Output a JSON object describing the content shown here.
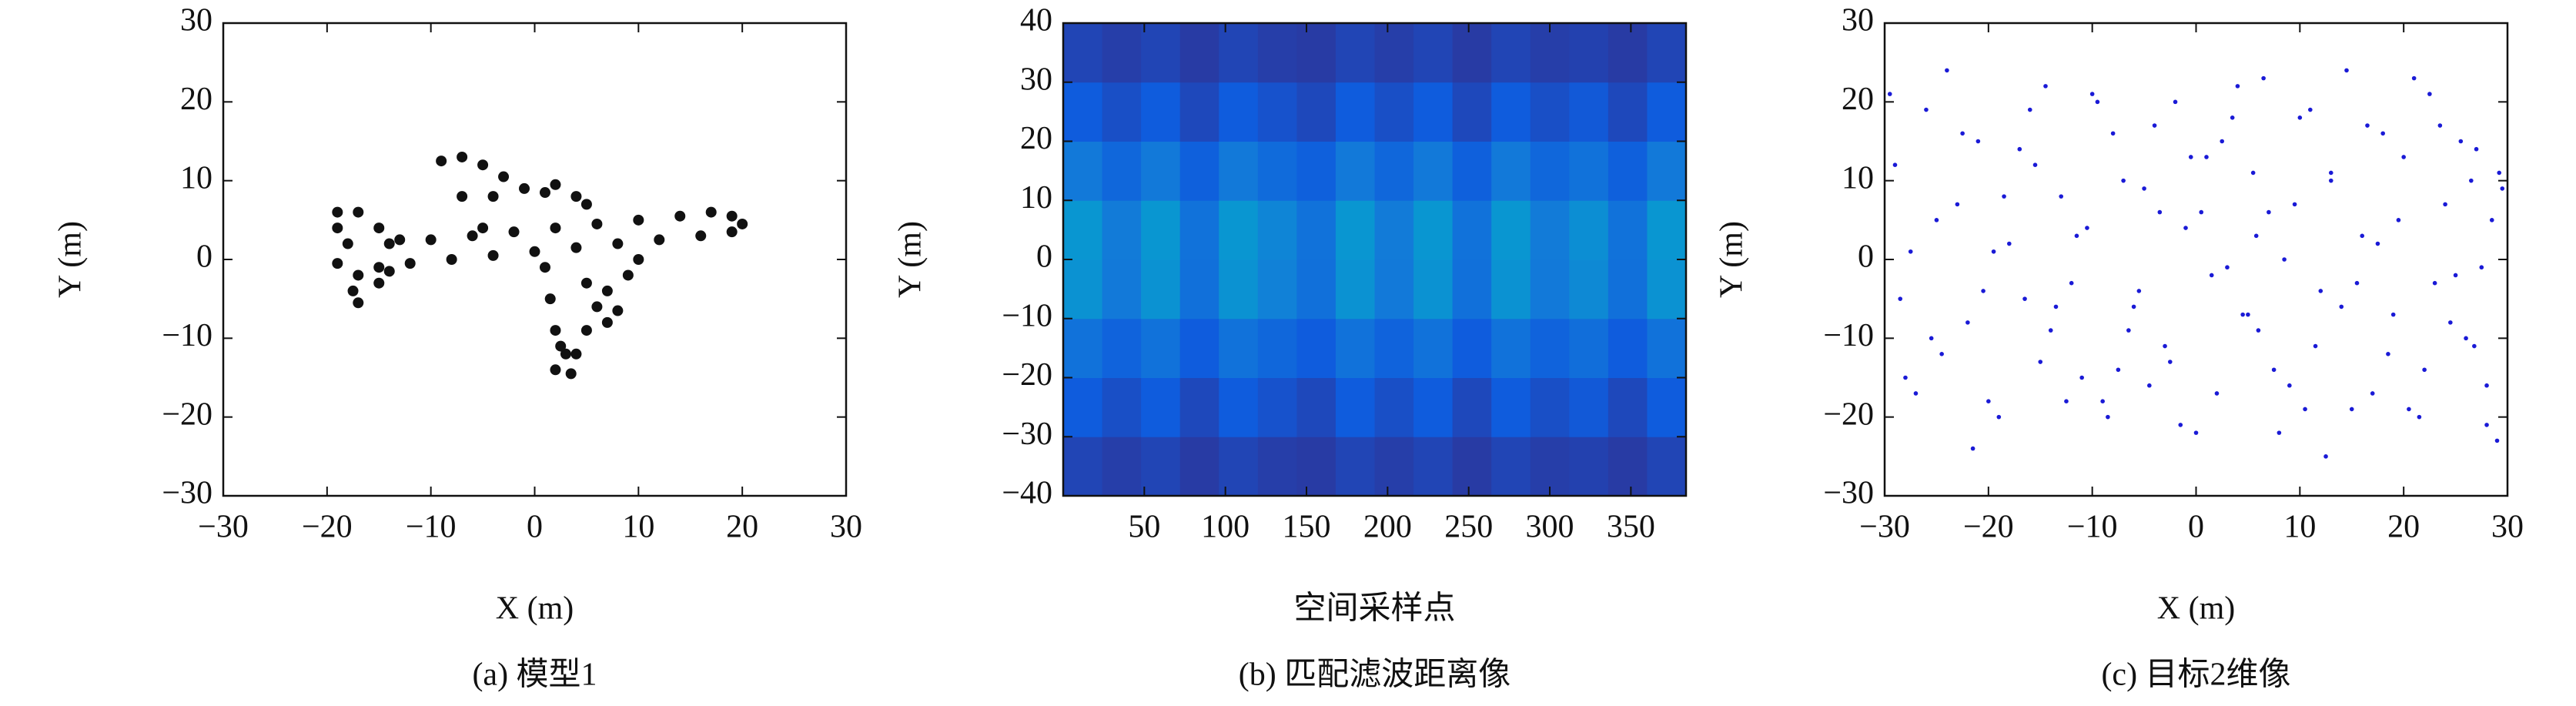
{
  "chart_data": [
    {
      "type": "scatter",
      "caption": "(a) 模型1",
      "xlabel": "X (m)",
      "ylabel": "Y (m)",
      "xlim": [
        -30,
        30
      ],
      "ylim": [
        -30,
        30
      ],
      "xticks": [
        {
          "value": -30,
          "label": "−30"
        },
        {
          "value": -20,
          "label": "−20"
        },
        {
          "value": -10,
          "label": "−10"
        },
        0,
        10,
        20,
        30
      ],
      "yticks": [
        {
          "value": -30,
          "label": "−30"
        },
        {
          "value": -20,
          "label": "−20"
        },
        {
          "value": -10,
          "label": "−10"
        },
        0,
        10,
        20,
        30
      ],
      "color": "#111111",
      "x": [
        -14,
        -10,
        -6,
        -2,
        2,
        6,
        10,
        14,
        17,
        19,
        20,
        19,
        16,
        12,
        8,
        4,
        0,
        -4,
        -8,
        -12,
        -15,
        -19,
        -17,
        -15,
        -13,
        -19,
        -18,
        -17,
        -17.5,
        -17,
        -15,
        -14,
        -19,
        -5,
        -7,
        -9,
        -7,
        -5,
        -3,
        -1,
        1,
        2,
        4,
        5,
        -4,
        1,
        1.5,
        2,
        2,
        3.5,
        4,
        5,
        6,
        7,
        9,
        10,
        5,
        7,
        8,
        3,
        2.5
      ],
      "y": [
        2,
        2.5,
        3,
        3.5,
        4,
        4.5,
        5,
        5.5,
        6,
        5.5,
        4.5,
        3.5,
        3,
        2.5,
        2,
        1.5,
        1,
        0.5,
        0,
        -0.5,
        -1,
        6,
        6,
        4,
        2.5,
        4,
        2,
        -2,
        -4,
        -5.5,
        -3,
        -1.5,
        -0.5,
        4,
        8,
        12.5,
        13,
        12,
        10.5,
        9,
        8.5,
        9.5,
        8,
        7,
        8,
        -1,
        -5,
        -9,
        -14,
        -14.5,
        -12,
        -9,
        -6,
        -4,
        -2,
        0,
        -3,
        -8,
        -6.5,
        -12,
        -11
      ]
    },
    {
      "type": "heatmap",
      "caption": "(b) 匹配滤波距离像",
      "xlabel": "空间采样点",
      "ylabel": "Y (m)",
      "xlim": [
        0,
        384
      ],
      "ylim": [
        -40,
        40
      ],
      "xticks": [
        50,
        100,
        150,
        200,
        250,
        300,
        350
      ],
      "yticks": [
        {
          "value": -40,
          "label": "−40"
        },
        {
          "value": -30,
          "label": "−30"
        },
        {
          "value": -20,
          "label": "−20"
        },
        {
          "value": -10,
          "label": "−10"
        },
        0,
        10,
        20,
        30,
        40
      ],
      "x_edges": [
        0,
        24,
        48,
        72,
        96,
        120,
        144,
        168,
        192,
        216,
        240,
        264,
        288,
        312,
        336,
        360,
        384
      ],
      "y_edges": [
        -40,
        -30,
        -20,
        -10,
        0,
        10,
        20,
        30,
        40
      ],
      "z": [
        [
          0.08,
          0.06,
          0.08,
          0.05,
          0.08,
          0.06,
          0.05,
          0.08,
          0.06,
          0.08,
          0.05,
          0.08,
          0.06,
          0.07,
          0.05,
          0.08
        ],
        [
          0.15,
          0.11,
          0.15,
          0.09,
          0.15,
          0.12,
          0.09,
          0.15,
          0.11,
          0.15,
          0.09,
          0.15,
          0.11,
          0.14,
          0.09,
          0.15
        ],
        [
          0.25,
          0.18,
          0.25,
          0.15,
          0.25,
          0.2,
          0.15,
          0.25,
          0.18,
          0.25,
          0.15,
          0.25,
          0.18,
          0.23,
          0.15,
          0.25
        ],
        [
          0.4,
          0.28,
          0.4,
          0.24,
          0.4,
          0.32,
          0.24,
          0.4,
          0.28,
          0.4,
          0.24,
          0.4,
          0.28,
          0.36,
          0.24,
          0.4
        ],
        [
          0.42,
          0.29,
          0.42,
          0.25,
          0.42,
          0.34,
          0.25,
          0.42,
          0.29,
          0.42,
          0.25,
          0.42,
          0.29,
          0.38,
          0.25,
          0.42
        ],
        [
          0.28,
          0.2,
          0.28,
          0.17,
          0.28,
          0.22,
          0.17,
          0.28,
          0.2,
          0.28,
          0.17,
          0.28,
          0.2,
          0.25,
          0.17,
          0.28
        ],
        [
          0.15,
          0.11,
          0.15,
          0.09,
          0.15,
          0.12,
          0.09,
          0.15,
          0.11,
          0.15,
          0.09,
          0.15,
          0.11,
          0.14,
          0.09,
          0.15
        ],
        [
          0.08,
          0.06,
          0.08,
          0.05,
          0.08,
          0.06,
          0.05,
          0.08,
          0.06,
          0.08,
          0.05,
          0.08,
          0.06,
          0.07,
          0.05,
          0.08
        ]
      ],
      "colormap": "parula"
    },
    {
      "type": "scatter",
      "caption": "(c) 目标2维像",
      "xlabel": "X (m)",
      "ylabel": "Y (m)",
      "xlim": [
        -30,
        30
      ],
      "ylim": [
        -30,
        30
      ],
      "xticks": [
        {
          "value": -30,
          "label": "−30"
        },
        {
          "value": -20,
          "label": "−20"
        },
        {
          "value": -10,
          "label": "−10"
        },
        0,
        10,
        20,
        30
      ],
      "yticks": [
        {
          "value": -30,
          "label": "−30"
        },
        {
          "value": -20,
          "label": "−20"
        },
        {
          "value": -10,
          "label": "−10"
        },
        0,
        10,
        20,
        30
      ],
      "color": "#1a1ad6",
      "x": [
        -29,
        -27,
        -25,
        -24,
        -22,
        -21,
        -19,
        -18,
        -16,
        -15,
        -13,
        -12,
        -10,
        -9,
        -7,
        -6,
        -4,
        -3,
        -1,
        0,
        1,
        3,
        4,
        6,
        7,
        9,
        10,
        12,
        13,
        15,
        16,
        18,
        19,
        21,
        22,
        24,
        25,
        27,
        28,
        29.5,
        -28.5,
        -26,
        -24.5,
        -23,
        -20,
        -19.5,
        -17,
        -14,
        -14.5,
        -11,
        -11.5,
        -8,
        -8.5,
        -5,
        -5.5,
        -2,
        -2.5,
        0.5,
        2,
        2.5,
        5,
        5.5,
        8,
        8.5,
        11,
        11.5,
        14,
        14.5,
        17,
        17.5,
        20,
        20.5,
        23,
        23.5,
        26,
        26.5,
        28,
        28.5,
        -29.5,
        29,
        -27.5,
        -25.5,
        -22.5,
        -21.5,
        -18.5,
        -16.5,
        -15.5,
        -12.5,
        -10.5,
        -9.5,
        -7.5,
        -6.5,
        -3.5,
        -1.5,
        -0.5,
        1.5,
        3.5,
        4.5,
        6.5,
        7.5,
        9.5,
        10.5,
        12.5,
        13,
        15.5,
        16.5,
        18.5,
        19.5,
        21.5,
        22.5,
        24.5,
        25.5,
        27.5,
        29.2,
        -28,
        -20.5,
        -13.5,
        -4.5,
        5.8,
        26.8
      ],
      "y": [
        12,
        -17,
        5,
        24,
        -8,
        15,
        -20,
        2,
        19,
        -13,
        8,
        -3,
        21,
        -18,
        10,
        -6,
        17,
        -11,
        4,
        -22,
        13,
        -1,
        22,
        -9,
        6,
        -16,
        18,
        -4,
        11,
        -19,
        3,
        16,
        -7,
        23,
        -14,
        7,
        -2,
        14,
        -21,
        9,
        -5,
        19,
        -12,
        7,
        -18,
        1,
        14,
        -9,
        22,
        -15,
        3,
        16,
        -20,
        9,
        -4,
        20,
        -13,
        6,
        -17,
        15,
        -7,
        11,
        -22,
        0,
        19,
        -11,
        -6,
        24,
        -17,
        2,
        13,
        -19,
        -3,
        17,
        -10,
        10,
        -16,
        5,
        21,
        -23,
        1,
        -10,
        16,
        -24,
        8,
        -5,
        12,
        -18,
        4,
        20,
        -14,
        -9,
        6,
        -21,
        13,
        -2,
        18,
        -7,
        23,
        -14,
        7,
        -19,
        -25,
        10,
        -3,
        17,
        -12,
        5,
        -20,
        21,
        -8,
        15,
        -1,
        11,
        -15,
        -4,
        -6,
        -16,
        3,
        -11
      ]
    }
  ]
}
